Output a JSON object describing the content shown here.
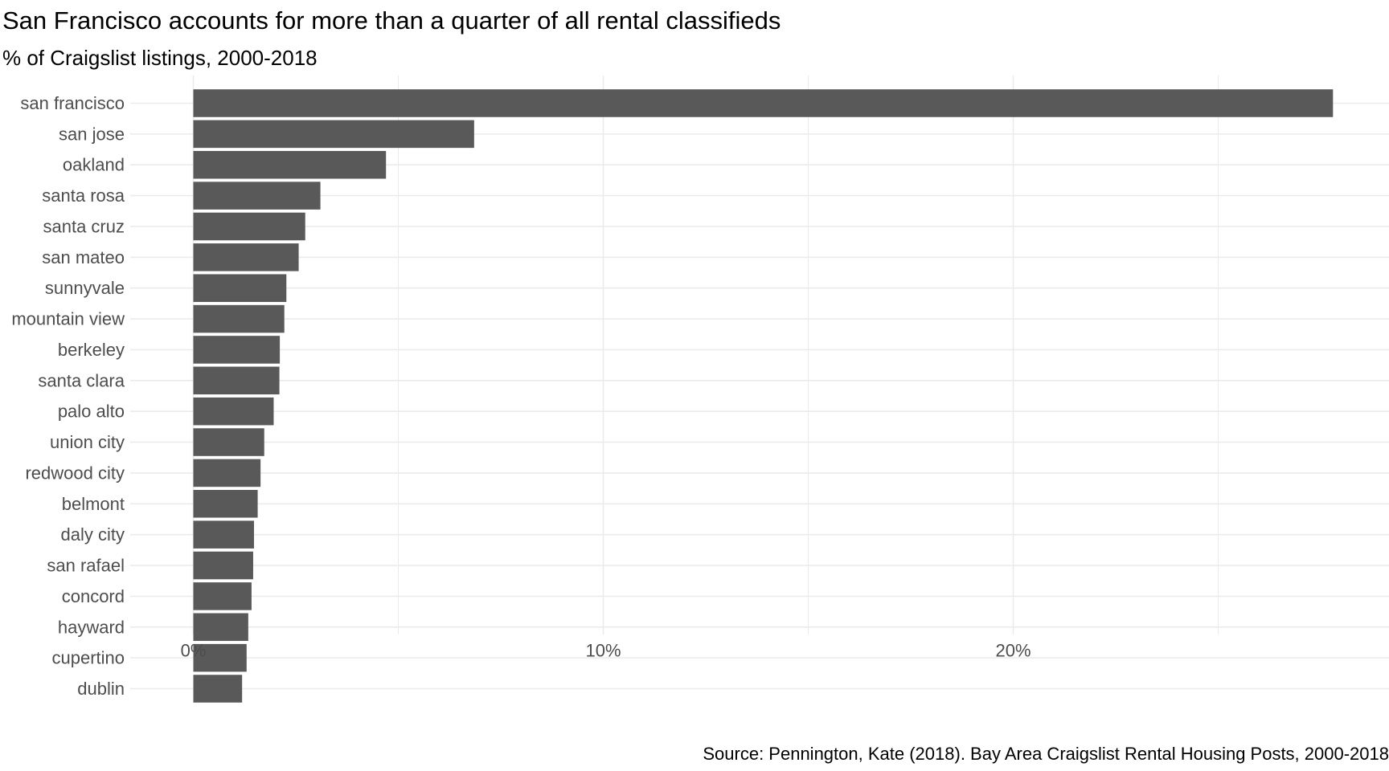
{
  "chart_data": {
    "type": "bar",
    "orientation": "horizontal",
    "title": "San Francisco accounts for more than a quarter of all rental classifieds",
    "subtitle": "% of Craigslist listings, 2000-2018",
    "caption": "Source: Pennington, Kate (2018). Bay Area Craigslist Rental Housing Posts, 2000-2018",
    "xlabel": "",
    "ylabel": "",
    "xlim": [
      -1.5,
      29.3
    ],
    "x_ticks": [
      0,
      10,
      20
    ],
    "x_tick_labels": [
      "0%",
      "10%",
      "20%"
    ],
    "grid": true,
    "categories": [
      "san francisco",
      "san jose",
      "oakland",
      "santa rosa",
      "santa cruz",
      "san mateo",
      "sunnyvale",
      "mountain view",
      "berkeley",
      "santa clara",
      "palo alto",
      "union city",
      "redwood city",
      "belmont",
      "daly city",
      "san rafael",
      "concord",
      "hayward",
      "cupertino",
      "dublin"
    ],
    "values": [
      27.8,
      6.85,
      4.7,
      3.1,
      2.73,
      2.57,
      2.27,
      2.22,
      2.11,
      2.1,
      1.96,
      1.73,
      1.64,
      1.57,
      1.48,
      1.46,
      1.42,
      1.34,
      1.3,
      1.19
    ],
    "bar_color": "#595959",
    "grid_color": "#ebebeb"
  }
}
